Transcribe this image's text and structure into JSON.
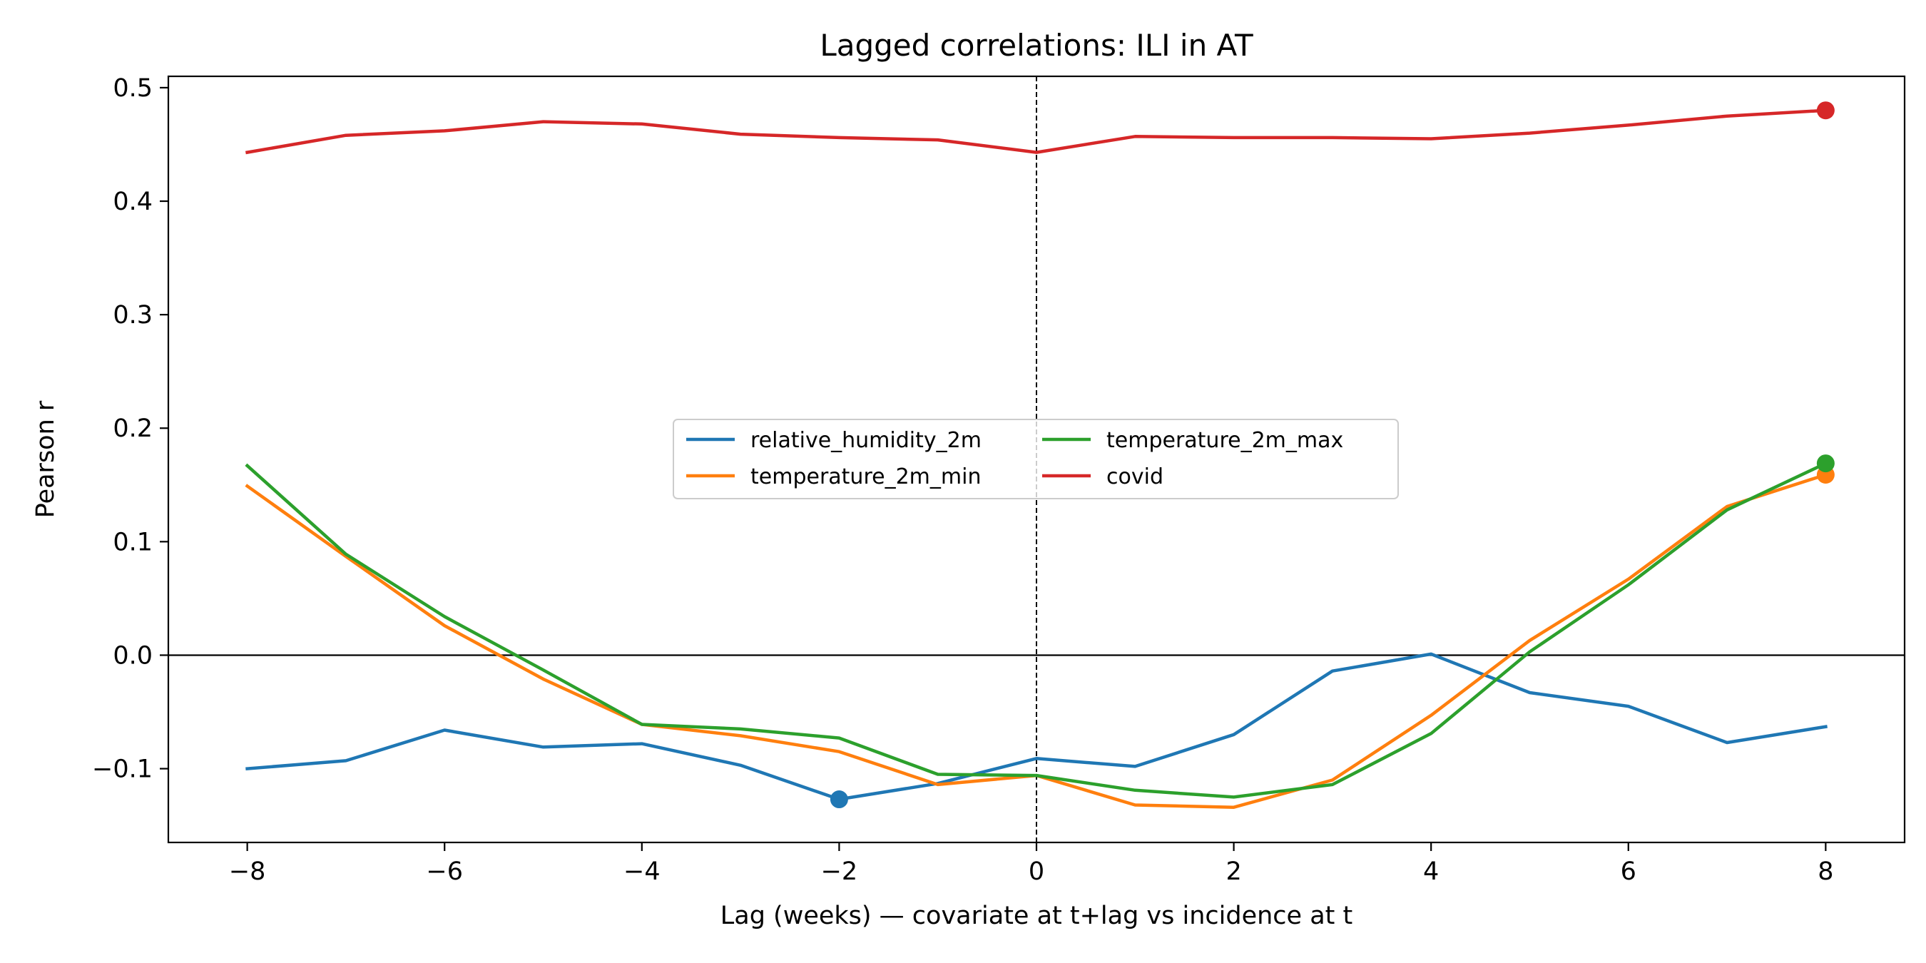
{
  "chart_data": {
    "type": "line",
    "title": "Lagged correlations: ILI in AT",
    "xlabel": "Lag (weeks) — covariate at t+lag vs incidence at t",
    "ylabel": "Pearson r",
    "xlim": [
      -8.8,
      8.8
    ],
    "ylim": [
      -0.165,
      0.51
    ],
    "xticks": [
      -8,
      -6,
      -4,
      -2,
      0,
      2,
      4,
      6,
      8
    ],
    "xtick_labels": [
      "−8",
      "−6",
      "−4",
      "−2",
      "0",
      "2",
      "4",
      "6",
      "8"
    ],
    "yticks": [
      -0.1,
      0.0,
      0.1,
      0.2,
      0.3,
      0.4,
      0.5
    ],
    "ytick_labels": [
      "−0.1",
      "0.0",
      "0.1",
      "0.2",
      "0.3",
      "0.4",
      "0.5"
    ],
    "grid": false,
    "legend_position": "center",
    "reference_lines": [
      {
        "axis": "y",
        "value": 0.0,
        "style": "solid"
      },
      {
        "axis": "x",
        "value": 0,
        "style": "dashed"
      }
    ],
    "x": [
      -8,
      -7,
      -6,
      -5,
      -4,
      -3,
      -2,
      -1,
      0,
      1,
      2,
      3,
      4,
      5,
      6,
      7,
      8
    ],
    "series": [
      {
        "name": "relative_humidity_2m",
        "color": "#1f77b4",
        "values": [
          -0.1,
          -0.093,
          -0.066,
          -0.081,
          -0.078,
          -0.097,
          -0.127,
          -0.113,
          -0.091,
          -0.098,
          -0.07,
          -0.014,
          0.001,
          -0.033,
          -0.045,
          -0.077,
          -0.063
        ],
        "marker_at_x": -2
      },
      {
        "name": "temperature_2m_min",
        "color": "#ff7f0e",
        "values": [
          0.149,
          0.087,
          0.026,
          -0.021,
          -0.061,
          -0.071,
          -0.085,
          -0.114,
          -0.106,
          -0.132,
          -0.134,
          -0.11,
          -0.053,
          0.013,
          0.067,
          0.131,
          0.159
        ],
        "marker_at_x": 8
      },
      {
        "name": "temperature_2m_max",
        "color": "#2ca02c",
        "values": [
          0.167,
          0.089,
          0.034,
          -0.013,
          -0.061,
          -0.065,
          -0.073,
          -0.105,
          -0.106,
          -0.119,
          -0.125,
          -0.114,
          -0.069,
          0.003,
          0.062,
          0.128,
          0.169
        ],
        "marker_at_x": 8
      },
      {
        "name": "covid",
        "color": "#d62728",
        "values": [
          0.443,
          0.458,
          0.462,
          0.47,
          0.468,
          0.459,
          0.456,
          0.454,
          0.443,
          0.457,
          0.456,
          0.456,
          0.455,
          0.46,
          0.467,
          0.475,
          0.48
        ],
        "marker_at_x": 8
      }
    ]
  }
}
